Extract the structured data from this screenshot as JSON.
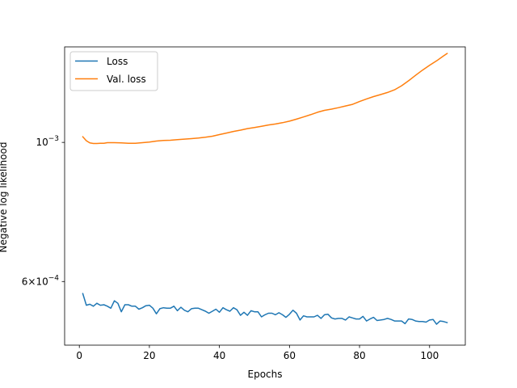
{
  "chart_data": {
    "type": "line",
    "title": "",
    "xlabel": "Epochs",
    "ylabel": "Negative log likelihood",
    "xscale": "linear",
    "yscale": "log",
    "xlim": [
      -4.2,
      110.2
    ],
    "ylim": [
      0.000475,
      0.00142
    ],
    "grid": false,
    "legend_position": "upper-left",
    "x_ticks": [
      {
        "value": 0,
        "label": "0"
      },
      {
        "value": 20,
        "label": "20"
      },
      {
        "value": 40,
        "label": "40"
      },
      {
        "value": 60,
        "label": "60"
      },
      {
        "value": 80,
        "label": "80"
      },
      {
        "value": 100,
        "label": "100"
      }
    ],
    "y_ticks": [
      {
        "value": 0.001,
        "mantissa": "10",
        "exponent": "−3"
      },
      {
        "value": 0.0006,
        "mantissa": "6×10",
        "exponent": "−4"
      }
    ],
    "series": [
      {
        "name": "Loss",
        "color": "#1f77b4",
        "x": [
          1,
          2,
          3,
          4,
          5,
          6,
          7,
          8,
          9,
          10,
          11,
          12,
          13,
          14,
          15,
          16,
          17,
          18,
          19,
          20,
          21,
          22,
          23,
          24,
          25,
          26,
          27,
          28,
          29,
          30,
          31,
          32,
          33,
          34,
          35,
          36,
          37,
          38,
          39,
          40,
          41,
          42,
          43,
          44,
          45,
          46,
          47,
          48,
          49,
          50,
          51,
          52,
          53,
          54,
          55,
          56,
          57,
          58,
          59,
          60,
          61,
          62,
          63,
          64,
          65,
          66,
          67,
          68,
          69,
          70,
          71,
          72,
          73,
          74,
          75,
          76,
          77,
          78,
          79,
          80,
          81,
          82,
          83,
          84,
          85,
          86,
          87,
          88,
          89,
          90,
          91,
          92,
          93,
          94,
          95,
          96,
          97,
          98,
          99,
          100,
          101,
          102,
          103,
          104,
          105
        ],
        "y": [
          0.000574,
          0.00055,
          0.000552,
          0.000548,
          0.000554,
          0.00055,
          0.000551,
          0.000548,
          0.000544,
          0.000559,
          0.000554,
          0.000537,
          0.000551,
          0.000551,
          0.000548,
          0.000548,
          0.000542,
          0.000545,
          0.000549,
          0.00055,
          0.000544,
          0.000533,
          0.000543,
          0.000545,
          0.000544,
          0.000544,
          0.000548,
          0.000539,
          0.000546,
          0.00054,
          0.000537,
          0.000543,
          0.000544,
          0.000544,
          0.000541,
          0.000538,
          0.000534,
          0.000538,
          0.000542,
          0.000536,
          0.000545,
          0.000541,
          0.000538,
          0.000545,
          0.000541,
          0.00053,
          0.000536,
          0.00053,
          0.000539,
          0.000537,
          0.000537,
          0.000527,
          0.000531,
          0.000534,
          0.000534,
          0.000531,
          0.000535,
          0.000531,
          0.000526,
          0.000532,
          0.00054,
          0.000534,
          0.000521,
          0.000529,
          0.000527,
          0.000527,
          0.000527,
          0.00053,
          0.000524,
          0.000531,
          0.000532,
          0.000525,
          0.000523,
          0.000524,
          0.000524,
          0.000521,
          0.000527,
          0.000525,
          0.000523,
          0.000523,
          0.000528,
          0.000519,
          0.000523,
          0.000526,
          0.00052,
          0.000521,
          0.000522,
          0.000524,
          0.000522,
          0.000519,
          0.000519,
          0.000519,
          0.000514,
          0.000523,
          0.000522,
          0.000519,
          0.000518,
          0.000518,
          0.000517,
          0.000521,
          0.000522,
          0.000513,
          0.000519,
          0.000518,
          0.000516
        ]
      },
      {
        "name": "Val. loss",
        "color": "#ff7f0e",
        "x": [
          1,
          2,
          3,
          4,
          5,
          6,
          7,
          8,
          9,
          10,
          12,
          14,
          16,
          18,
          20,
          22,
          24,
          26,
          28,
          30,
          32,
          34,
          36,
          38,
          40,
          42,
          44,
          46,
          48,
          50,
          52,
          54,
          56,
          58,
          60,
          62,
          64,
          66,
          68,
          70,
          72,
          74,
          76,
          78,
          80,
          82,
          84,
          86,
          88,
          90,
          92,
          94,
          96,
          98,
          100,
          102,
          104,
          105
        ],
        "y": [
          0.001021,
          0.001006,
          0.000998,
          0.000996,
          0.000996,
          0.000997,
          0.000997,
          0.000999,
          0.000999,
          0.000999,
          0.000998,
          0.000997,
          0.000997,
          0.000999,
          0.001001,
          0.001005,
          0.001007,
          0.001008,
          0.00101,
          0.001012,
          0.001014,
          0.001016,
          0.001019,
          0.001023,
          0.001029,
          0.001035,
          0.001041,
          0.001046,
          0.001052,
          0.001056,
          0.001061,
          0.001066,
          0.00107,
          0.001075,
          0.001081,
          0.001089,
          0.001098,
          0.001107,
          0.001117,
          0.001125,
          0.00113,
          0.001136,
          0.001143,
          0.00115,
          0.001162,
          0.001173,
          0.001183,
          0.001192,
          0.001201,
          0.001213,
          0.001231,
          0.001254,
          0.001279,
          0.001304,
          0.001327,
          0.001349,
          0.001374,
          0.001386
        ]
      }
    ]
  }
}
